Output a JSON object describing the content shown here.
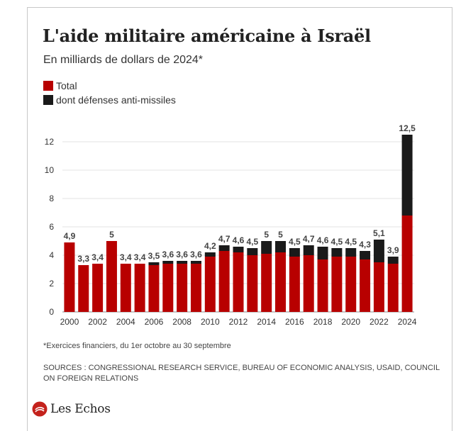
{
  "header": {
    "title": "L'aide militaire américaine à Israël",
    "subtitle": "En milliards de dollars de 2024*"
  },
  "footer": {
    "note": "*Exercices financiers, du 1er octobre au 30 septembre",
    "sources": "SOURCES : CONGRESSIONAL RESEARCH SERVICE, BUREAU OF ECONOMIC ANALYSIS, USAID, COUNCIL ON FOREIGN RELATIONS",
    "brand": "Les Echos"
  },
  "colors": {
    "total": "#b80000",
    "missile": "#1a1a1a",
    "grid": "#e3e3e3",
    "label": "#444444",
    "brand_red": "#c4221c"
  },
  "chart_data": {
    "type": "bar",
    "stacked": true,
    "x_tick_labels": [
      "2000",
      "2002",
      "2004",
      "2006",
      "2008",
      "2010",
      "2012",
      "2014",
      "2016",
      "2018",
      "2020",
      "2022",
      "2024"
    ],
    "y_tick_labels": [
      "0",
      "2",
      "4",
      "6",
      "8",
      "10",
      "12"
    ],
    "ylim": [
      0,
      13
    ],
    "grid": true,
    "legend": "top-left",
    "categories": [
      2000,
      2001,
      2002,
      2003,
      2004,
      2005,
      2006,
      2007,
      2008,
      2009,
      2010,
      2011,
      2012,
      2013,
      2014,
      2015,
      2016,
      2017,
      2018,
      2019,
      2020,
      2021,
      2022,
      2023,
      2024
    ],
    "series": [
      {
        "name": "Total",
        "values": [
          4.9,
          3.3,
          3.4,
          5,
          3.4,
          3.4,
          3.3,
          3.4,
          3.4,
          3.4,
          3.9,
          4.3,
          4.2,
          4.0,
          4.1,
          4.2,
          3.9,
          4.0,
          3.7,
          3.9,
          3.9,
          3.7,
          3.5,
          3.4,
          6.8
        ]
      },
      {
        "name": "dont défenses anti-missiles",
        "values": [
          0,
          0,
          0,
          0,
          0,
          0,
          0.2,
          0.2,
          0.2,
          0.2,
          0.3,
          0.4,
          0.4,
          0.5,
          0.9,
          0.8,
          0.6,
          0.7,
          0.9,
          0.6,
          0.6,
          0.6,
          1.6,
          0.5,
          5.7
        ]
      }
    ],
    "data_labels": [
      "4,9",
      "3,3",
      "3,4",
      "5",
      "3,4",
      "3,4",
      "3,5",
      "3,6",
      "3,6",
      "3,6",
      "4,2",
      "4,7",
      "4,6",
      "4,5",
      "5",
      "5",
      "4,5",
      "4,7",
      "4,6",
      "4,5",
      "4,5",
      "4,3",
      "5,1",
      "3,9",
      "12,5"
    ]
  }
}
